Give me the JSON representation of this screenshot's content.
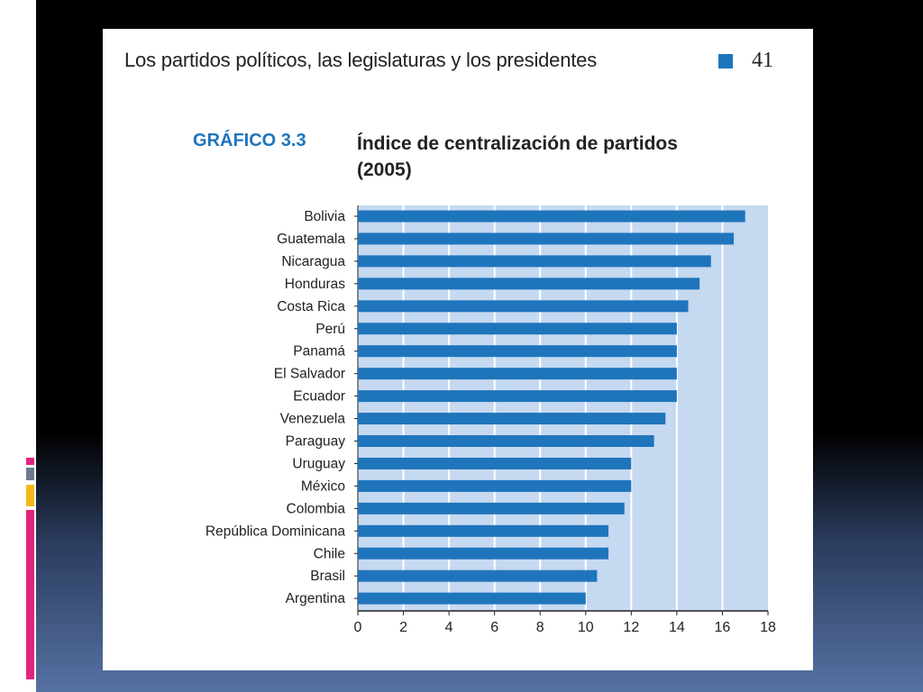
{
  "page": {
    "header": "Los partidos políticos, las legislaturas y los presidentes",
    "page_number": "41",
    "figure_label": "GRÁFICO 3.3",
    "figure_title_line1": "Índice de centralización de partidos",
    "figure_title_line2": "(2005)"
  },
  "colors": {
    "bar": "#1f75bc",
    "plot_background": "#c5d9f1",
    "gridline": "#ffffff",
    "label_blue": "#1f75bc"
  },
  "chart_data": {
    "type": "bar",
    "orientation": "horizontal",
    "title": "Índice de centralización de partidos (2005)",
    "categories": [
      "Bolivia",
      "Guatemala",
      "Nicaragua",
      "Honduras",
      "Costa Rica",
      "Perú",
      "Panamá",
      "El Salvador",
      "Ecuador",
      "Venezuela",
      "Paraguay",
      "Uruguay",
      "México",
      "Colombia",
      "República Dominicana",
      "Chile",
      "Brasil",
      "Argentina"
    ],
    "values": [
      17.0,
      16.5,
      15.5,
      15.0,
      14.5,
      14.0,
      14.0,
      14.0,
      14.0,
      13.5,
      13.0,
      12.0,
      12.0,
      11.7,
      11.0,
      11.0,
      10.5,
      10.0
    ],
    "xlim": [
      0,
      18
    ],
    "xticks": [
      0,
      2,
      4,
      6,
      8,
      10,
      12,
      14,
      16,
      18
    ],
    "grid": "vertical"
  }
}
